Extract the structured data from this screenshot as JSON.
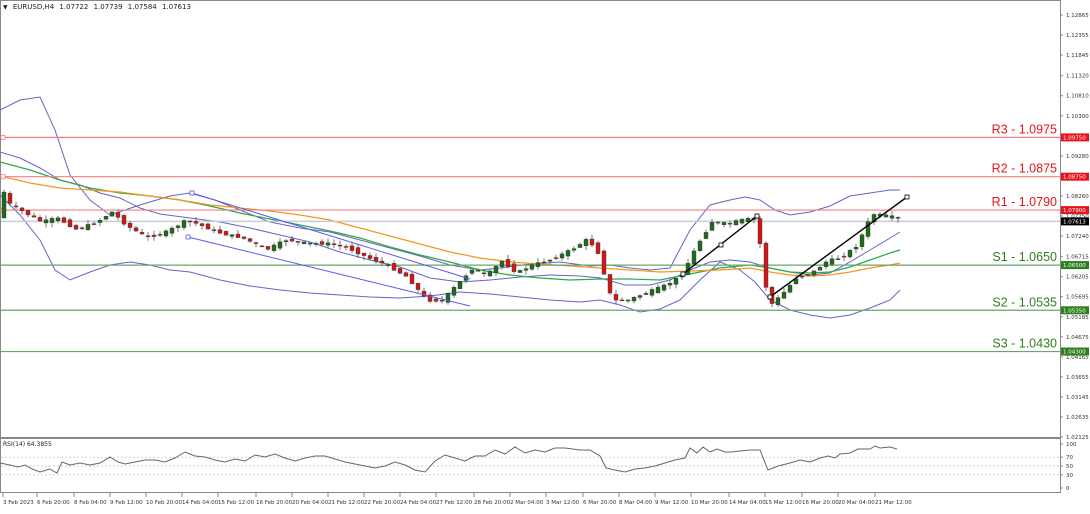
{
  "header": {
    "symbol": "EURUSD,H4",
    "open": "1.07722",
    "high": "1.07739",
    "low": "1.07584",
    "close": "1.07613",
    "menu_icon": "triangle-down-icon"
  },
  "colors": {
    "resistance": "#e8141d",
    "resistance_line": "#f08080",
    "support": "#2e7d1e",
    "support_line": "#6aa56a",
    "current_price_tag": "#000000",
    "bull_candle": "#1e6b1e",
    "bear_candle": "#d01818",
    "bollinger": "#6464c8",
    "ma_green": "#2ea84a",
    "ma_orange": "#f5961e",
    "trendline_down": "#5a5af0",
    "trendline_up": "#000000",
    "rsi_line": "#666666",
    "grid_dotted": "#bbbbbb"
  },
  "levels": [
    {
      "name": "R3",
      "label": "R3 - 1.0975",
      "value": 1.0975,
      "tag": "1.09750",
      "type": "resistance"
    },
    {
      "name": "R2",
      "label": "R2 - 1.0875",
      "value": 1.0875,
      "tag": "1.08750",
      "type": "resistance"
    },
    {
      "name": "R1",
      "label": "R1 - 1.0790",
      "value": 1.079,
      "tag": "1.07900",
      "type": "resistance"
    },
    {
      "name": "S1",
      "label": "S1 - 1.0650",
      "value": 1.065,
      "tag": "1.06500",
      "type": "support"
    },
    {
      "name": "S2",
      "label": "S2 - 1.0535",
      "value": 1.0535,
      "tag": "1.05350",
      "type": "support"
    },
    {
      "name": "S3",
      "label": "S3 - 1.0430",
      "value": 1.043,
      "tag": "1.04300",
      "type": "support"
    }
  ],
  "current_price": {
    "value": 1.07613,
    "tag": "1.07613"
  },
  "price_axis": {
    "ticks": [
      "1.12865",
      "1.12355",
      "1.11845",
      "1.11320",
      "1.10810",
      "1.10300",
      "1.09280",
      "1.08260",
      "1.07750",
      "1.07240",
      "1.06715",
      "1.06205",
      "1.05695",
      "1.05185",
      "1.04675",
      "1.04165",
      "1.03655",
      "1.03145",
      "1.02635",
      "1.02125"
    ]
  },
  "time_axis": {
    "ticks": [
      "3 Feb 2023",
      "6 Feb 20:00",
      "8 Feb 04:00",
      "9 Feb 12:00",
      "10 Feb 20:00",
      "14 Feb 04:00",
      "15 Feb 12:00",
      "16 Feb 20:00",
      "20 Feb 04:00",
      "21 Feb 12:00",
      "22 Feb 20:00",
      "24 Feb 04:00",
      "27 Feb 12:00",
      "28 Feb 20:00",
      "2 Mar 04:00",
      "3 Mar 12:00",
      "6 Mar 20:00",
      "8 Mar 04:00",
      "9 Mar 12:00",
      "10 Mar 20:00",
      "14 Mar 04:00",
      "15 Mar 12:00",
      "16 Mar 20:00",
      "20 Mar 04:00",
      "21 Mar 12:00"
    ]
  },
  "rsi": {
    "label": "RSI(14) 64.3855",
    "levels": [
      "100",
      "70",
      "50",
      "30",
      "0"
    ]
  },
  "chart_data": {
    "type": "candlestick",
    "title": "EURUSD,H4 1.07722 1.07739 1.07584 1.07613",
    "xlabel": "",
    "ylabel": "",
    "ylim": [
      1.02125,
      1.12865
    ],
    "grid": false,
    "categories": [
      "3 Feb 2023",
      "6 Feb 20:00",
      "8 Feb 04:00",
      "9 Feb 12:00",
      "10 Feb 20:00",
      "14 Feb 04:00",
      "15 Feb 12:00",
      "16 Feb 20:00",
      "20 Feb 04:00",
      "21 Feb 12:00",
      "22 Feb 20:00",
      "24 Feb 04:00",
      "27 Feb 12:00",
      "28 Feb 20:00",
      "2 Mar 04:00",
      "3 Mar 12:00",
      "6 Mar 20:00",
      "8 Mar 04:00",
      "9 Mar 12:00",
      "10 Mar 20:00",
      "14 Mar 04:00",
      "15 Mar 12:00",
      "16 Mar 20:00",
      "20 Mar 04:00",
      "21 Mar 12:00"
    ],
    "series": [
      {
        "name": "Close (approx.)",
        "values": [
          1.0795,
          1.076,
          1.0745,
          1.077,
          1.072,
          1.076,
          1.073,
          1.0715,
          1.073,
          1.07,
          1.066,
          1.057,
          1.061,
          1.066,
          1.062,
          1.069,
          1.07,
          1.053,
          1.058,
          1.072,
          1.074,
          1.053,
          1.065,
          1.07,
          1.078
        ]
      },
      {
        "name": "RSI(14) (approx.)",
        "values": [
          50,
          43,
          42,
          48,
          45,
          52,
          48,
          45,
          55,
          52,
          45,
          38,
          50,
          62,
          55,
          60,
          62,
          34,
          44,
          68,
          66,
          38,
          52,
          60,
          66
        ]
      }
    ],
    "horizontal_levels": {
      "R3": 1.0975,
      "R2": 1.0875,
      "R1": 1.079,
      "S1": 1.065,
      "S2": 1.0535,
      "S3": 1.043
    },
    "annotations": [
      "R3 - 1.0975",
      "R2 - 1.0875",
      "R1 - 1.0790",
      "S1 - 1.0650",
      "S2 - 1.0535",
      "S3 - 1.0430",
      "RSI(14) 64.3855"
    ],
    "indicators": [
      "Bollinger Bands",
      "Moving Average (green)",
      "Moving Average (orange)",
      "RSI(14)"
    ],
    "rsi_levels": [
      30,
      50,
      70
    ],
    "rsi_range": [
      0,
      100
    ],
    "last_rsi": 64.3855
  }
}
